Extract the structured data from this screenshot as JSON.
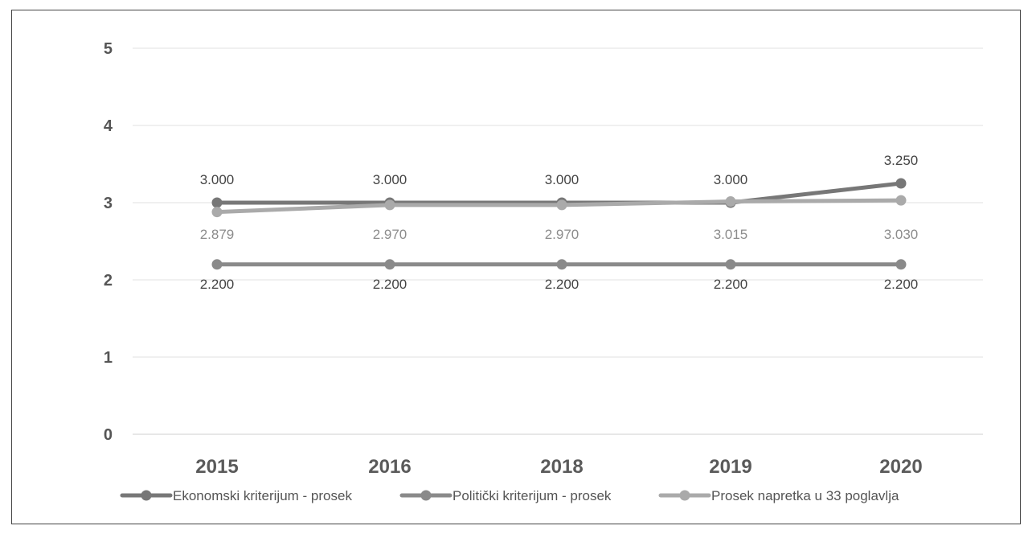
{
  "chart_data": {
    "type": "line",
    "categories": [
      "2015",
      "2016",
      "2018",
      "2019",
      "2020"
    ],
    "ylim": [
      0,
      5
    ],
    "yticks": [
      "0",
      "1",
      "2",
      "3",
      "4",
      "5"
    ],
    "grid": true,
    "legend_position": "bottom",
    "series": [
      {
        "name": "Ekonomski kriterijum - prosek",
        "values": [
          3.0,
          3.0,
          3.0,
          3.0,
          3.25
        ],
        "labels": [
          "3.000",
          "3.000",
          "3.000",
          "3.000",
          "3.250"
        ],
        "label_position": "above",
        "color": "#777777",
        "label_color": "#444444"
      },
      {
        "name": "Politički kriterijum - prosek",
        "values": [
          2.2,
          2.2,
          2.2,
          2.2,
          2.2
        ],
        "labels": [
          "2.200",
          "2.200",
          "2.200",
          "2.200",
          "2.200"
        ],
        "label_position": "below",
        "color": "#8a8a8a",
        "label_color": "#444444"
      },
      {
        "name": "Prosek napretka u 33 poglavlja",
        "values": [
          2.879,
          2.97,
          2.97,
          3.015,
          3.03
        ],
        "labels": [
          "2.879",
          "2.970",
          "2.970",
          "3.015",
          "3.030"
        ],
        "label_position": "below",
        "color": "#aaaaaa",
        "label_color": "#8c8c8c"
      }
    ]
  }
}
